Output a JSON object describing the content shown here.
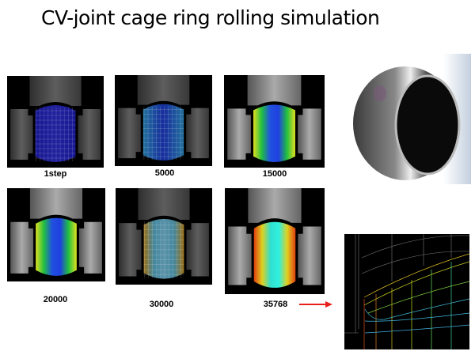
{
  "slide": {
    "title": "CV-joint cage ring rolling simulation"
  },
  "steps": [
    {
      "label": "1step",
      "style": "wire-blue"
    },
    {
      "label": "5000",
      "style": "wire-mix"
    },
    {
      "label": "15000",
      "style": "solid-blue"
    },
    {
      "label": "20000",
      "style": "solid-blue"
    },
    {
      "label": "30000",
      "style": "wire-cyan"
    },
    {
      "label": "35768",
      "style": "solid-cyan"
    }
  ],
  "colors": {
    "arrow": "#e8201c",
    "background": "#000000"
  }
}
